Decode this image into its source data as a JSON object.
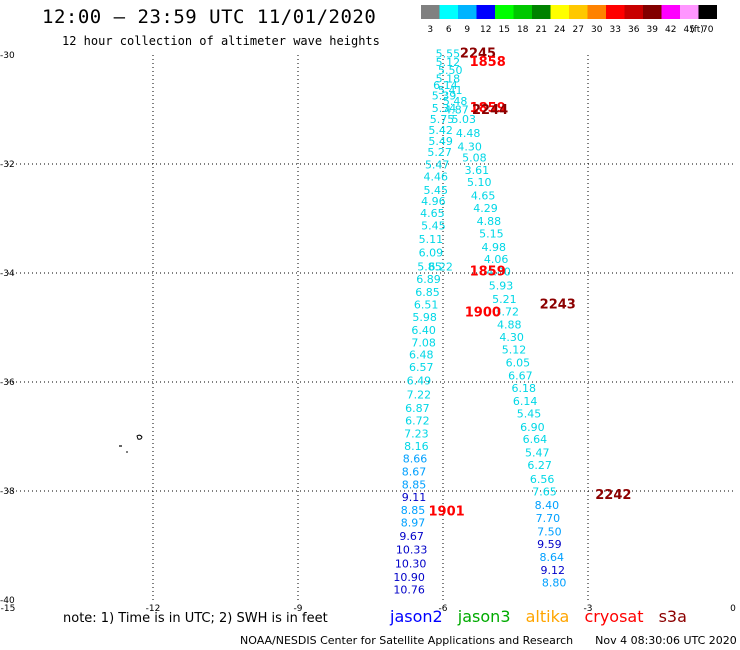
{
  "header": {
    "title": "12:00 – 23:59 UTC 11/01/2020",
    "subtitle": "12 hour collection of altimeter wave heights"
  },
  "colorbar": {
    "unit_label": "(ft)",
    "bins": [
      {
        "label": "3",
        "color": "#808080"
      },
      {
        "label": "6",
        "color": "#00ffff"
      },
      {
        "label": "9",
        "color": "#00b4ff"
      },
      {
        "label": "12",
        "color": "#0000ff"
      },
      {
        "label": "15",
        "color": "#00ff00"
      },
      {
        "label": "18",
        "color": "#00c800"
      },
      {
        "label": "21",
        "color": "#008200"
      },
      {
        "label": "24",
        "color": "#ffff00"
      },
      {
        "label": "27",
        "color": "#ffc800"
      },
      {
        "label": "30",
        "color": "#ff8200"
      },
      {
        "label": "33",
        "color": "#ff0000"
      },
      {
        "label": "36",
        "color": "#c80000"
      },
      {
        "label": "39",
        "color": "#820000"
      },
      {
        "label": "42",
        "color": "#ff00ff"
      },
      {
        "label": "45",
        "color": "#ff96ff"
      },
      {
        "label": "70",
        "color": "#000000"
      }
    ]
  },
  "axes": {
    "lon_range": [
      -15,
      0
    ],
    "lat_range": [
      -40,
      -30
    ],
    "x_ticks": [
      {
        "value": -15,
        "label": "-15"
      },
      {
        "value": -12,
        "label": "-12"
      },
      {
        "value": -9,
        "label": "-9"
      },
      {
        "value": -6,
        "label": "-6"
      },
      {
        "value": -3,
        "label": "-3"
      },
      {
        "value": 0,
        "label": "0"
      }
    ],
    "y_ticks": [
      {
        "value": -30,
        "label": "-30"
      },
      {
        "value": -32,
        "label": "-32"
      },
      {
        "value": -34,
        "label": "-34"
      },
      {
        "value": -36,
        "label": "-36"
      },
      {
        "value": -38,
        "label": "-38"
      },
      {
        "value": -40,
        "label": "-40"
      }
    ],
    "grid": "dotted"
  },
  "colors": {
    "cyan": "#00d7e6",
    "light_blue": "#00a0ff",
    "dark_blue": "#0000c8",
    "red": "#ff0000",
    "dark_red": "#8c0000"
  },
  "tracks": {
    "track_a": [
      {
        "lon": -5.9,
        "lat": -30.05,
        "v": "5.55",
        "c": "cyan"
      },
      {
        "lon": -5.9,
        "lat": -30.2,
        "v": "5.12",
        "c": "cyan"
      },
      {
        "lon": -5.85,
        "lat": -30.35,
        "v": "5.50",
        "c": "cyan"
      },
      {
        "lon": -5.9,
        "lat": -30.5,
        "v": "5.18",
        "c": "cyan"
      },
      {
        "lon": -5.95,
        "lat": -30.62,
        "v": "6.14",
        "c": "cyan"
      },
      {
        "lon": -5.85,
        "lat": -30.72,
        "v": "5.41",
        "c": "cyan"
      },
      {
        "lon": -5.98,
        "lat": -30.82,
        "v": "5.39",
        "c": "cyan"
      },
      {
        "lon": -5.75,
        "lat": -30.92,
        "v": "5.48",
        "c": "cyan"
      },
      {
        "lon": -5.98,
        "lat": -31.05,
        "v": "5.34",
        "c": "cyan"
      },
      {
        "lon": -5.72,
        "lat": -31.07,
        "v": "4.87",
        "c": "cyan"
      },
      {
        "lon": -6.02,
        "lat": -31.25,
        "v": "5.75",
        "c": "cyan"
      },
      {
        "lon": -5.57,
        "lat": -31.25,
        "v": "5.03",
        "c": "cyan"
      },
      {
        "lon": -6.05,
        "lat": -31.45,
        "v": "5.42",
        "c": "cyan"
      },
      {
        "lon": -5.48,
        "lat": -31.5,
        "v": "4.48",
        "c": "cyan"
      },
      {
        "lon": -6.05,
        "lat": -31.65,
        "v": "5.49",
        "c": "cyan"
      },
      {
        "lon": -5.45,
        "lat": -31.75,
        "v": "4.30",
        "c": "cyan"
      },
      {
        "lon": -6.07,
        "lat": -31.85,
        "v": "5.27",
        "c": "cyan"
      },
      {
        "lon": -5.35,
        "lat": -31.95,
        "v": "5.08",
        "c": "cyan"
      },
      {
        "lon": -6.12,
        "lat": -32.08,
        "v": "5.47",
        "c": "cyan"
      },
      {
        "lon": -5.3,
        "lat": -32.18,
        "v": "3.61",
        "c": "cyan"
      },
      {
        "lon": -6.15,
        "lat": -32.3,
        "v": "4.46",
        "c": "cyan"
      },
      {
        "lon": -5.25,
        "lat": -32.4,
        "v": "5.10",
        "c": "cyan"
      },
      {
        "lon": -6.15,
        "lat": -32.55,
        "v": "5.45",
        "c": "cyan"
      },
      {
        "lon": -5.17,
        "lat": -32.65,
        "v": "4.65",
        "c": "cyan"
      },
      {
        "lon": -6.2,
        "lat": -32.75,
        "v": "4.96",
        "c": "cyan"
      },
      {
        "lon": -5.12,
        "lat": -32.88,
        "v": "4.29",
        "c": "cyan"
      },
      {
        "lon": -6.22,
        "lat": -32.97,
        "v": "4.65",
        "c": "cyan"
      },
      {
        "lon": -5.05,
        "lat": -33.12,
        "v": "4.88",
        "c": "cyan"
      },
      {
        "lon": -6.2,
        "lat": -33.2,
        "v": "5.45",
        "c": "cyan"
      },
      {
        "lon": -5.0,
        "lat": -33.35,
        "v": "5.15",
        "c": "cyan"
      },
      {
        "lon": -6.25,
        "lat": -33.45,
        "v": "5.11",
        "c": "cyan"
      },
      {
        "lon": -4.95,
        "lat": -33.6,
        "v": "4.98",
        "c": "cyan"
      },
      {
        "lon": -6.25,
        "lat": -33.7,
        "v": "6.09",
        "c": "cyan"
      },
      {
        "lon": -4.9,
        "lat": -33.82,
        "v": "4.06",
        "c": "cyan"
      },
      {
        "lon": -6.28,
        "lat": -33.95,
        "v": "5.85",
        "c": "cyan"
      },
      {
        "lon": -6.05,
        "lat": -33.95,
        "v": "6.22",
        "c": "cyan"
      },
      {
        "lon": -4.85,
        "lat": -34.05,
        "v": "4.80",
        "c": "cyan"
      },
      {
        "lon": -6.3,
        "lat": -34.18,
        "v": "6.89",
        "c": "cyan"
      },
      {
        "lon": -4.8,
        "lat": -34.3,
        "v": "5.93",
        "c": "cyan"
      },
      {
        "lon": -6.32,
        "lat": -34.42,
        "v": "6.85",
        "c": "cyan"
      },
      {
        "lon": -4.73,
        "lat": -34.55,
        "v": "5.21",
        "c": "cyan"
      },
      {
        "lon": -6.35,
        "lat": -34.65,
        "v": "6.51",
        "c": "cyan"
      },
      {
        "lon": -4.68,
        "lat": -34.78,
        "v": "3.72",
        "c": "cyan"
      },
      {
        "lon": -6.38,
        "lat": -34.88,
        "v": "5.98",
        "c": "cyan"
      },
      {
        "lon": -4.63,
        "lat": -35.02,
        "v": "4.88",
        "c": "cyan"
      },
      {
        "lon": -6.4,
        "lat": -35.12,
        "v": "6.40",
        "c": "cyan"
      },
      {
        "lon": -4.58,
        "lat": -35.25,
        "v": "4.30",
        "c": "cyan"
      },
      {
        "lon": -6.4,
        "lat": -35.35,
        "v": "7.08",
        "c": "cyan"
      },
      {
        "lon": -4.53,
        "lat": -35.48,
        "v": "5.12",
        "c": "cyan"
      },
      {
        "lon": -6.45,
        "lat": -35.57,
        "v": "6.48",
        "c": "cyan"
      },
      {
        "lon": -4.45,
        "lat": -35.72,
        "v": "6.05",
        "c": "cyan"
      },
      {
        "lon": -6.45,
        "lat": -35.8,
        "v": "6.57",
        "c": "cyan"
      },
      {
        "lon": -4.4,
        "lat": -35.95,
        "v": "6.67",
        "c": "cyan"
      },
      {
        "lon": -6.5,
        "lat": -36.05,
        "v": "6.49",
        "c": "cyan"
      },
      {
        "lon": -4.33,
        "lat": -36.18,
        "v": "6.18",
        "c": "cyan"
      },
      {
        "lon": -6.5,
        "lat": -36.3,
        "v": "7.22",
        "c": "cyan"
      },
      {
        "lon": -4.3,
        "lat": -36.42,
        "v": "6.14",
        "c": "cyan"
      },
      {
        "lon": -6.53,
        "lat": -36.55,
        "v": "6.87",
        "c": "cyan"
      },
      {
        "lon": -4.22,
        "lat": -36.65,
        "v": "5.45",
        "c": "cyan"
      },
      {
        "lon": -6.53,
        "lat": -36.78,
        "v": "6.72",
        "c": "cyan"
      },
      {
        "lon": -4.15,
        "lat": -36.9,
        "v": "6.90",
        "c": "cyan"
      },
      {
        "lon": -6.55,
        "lat": -37.02,
        "v": "7.23",
        "c": "cyan"
      },
      {
        "lon": -4.1,
        "lat": -37.12,
        "v": "6.64",
        "c": "cyan"
      },
      {
        "lon": -6.55,
        "lat": -37.25,
        "v": "8.16",
        "c": "cyan"
      },
      {
        "lon": -4.05,
        "lat": -37.37,
        "v": "5.47",
        "c": "cyan"
      },
      {
        "lon": -6.58,
        "lat": -37.48,
        "v": "8.66",
        "c": "light_blue"
      },
      {
        "lon": -4.0,
        "lat": -37.6,
        "v": "6.27",
        "c": "cyan"
      },
      {
        "lon": -6.6,
        "lat": -37.72,
        "v": "8.67",
        "c": "light_blue"
      },
      {
        "lon": -3.95,
        "lat": -37.85,
        "v": "6.56",
        "c": "cyan"
      },
      {
        "lon": -6.6,
        "lat": -37.95,
        "v": "8.85",
        "c": "light_blue"
      },
      {
        "lon": -3.9,
        "lat": -38.08,
        "v": "7.65",
        "c": "cyan"
      },
      {
        "lon": -6.6,
        "lat": -38.18,
        "v": "9.11",
        "c": "dark_blue"
      },
      {
        "lon": -3.85,
        "lat": -38.33,
        "v": "8.40",
        "c": "light_blue"
      },
      {
        "lon": -6.62,
        "lat": -38.42,
        "v": "8.85",
        "c": "light_blue"
      },
      {
        "lon": -3.83,
        "lat": -38.57,
        "v": "7.70",
        "c": "light_blue"
      },
      {
        "lon": -6.62,
        "lat": -38.65,
        "v": "8.97",
        "c": "light_blue"
      },
      {
        "lon": -3.8,
        "lat": -38.82,
        "v": "7.50",
        "c": "light_blue"
      },
      {
        "lon": -6.65,
        "lat": -38.9,
        "v": "9.67",
        "c": "dark_blue"
      },
      {
        "lon": -3.8,
        "lat": -39.05,
        "v": "9.59",
        "c": "dark_blue"
      },
      {
        "lon": -6.65,
        "lat": -39.15,
        "v": "10.33",
        "c": "dark_blue"
      },
      {
        "lon": -3.75,
        "lat": -39.28,
        "v": "8.64",
        "c": "light_blue"
      },
      {
        "lon": -6.67,
        "lat": -39.4,
        "v": "10.30",
        "c": "dark_blue"
      },
      {
        "lon": -3.73,
        "lat": -39.52,
        "v": "9.12",
        "c": "dark_blue"
      },
      {
        "lon": -6.7,
        "lat": -39.65,
        "v": "10.90",
        "c": "dark_blue"
      },
      {
        "lon": -3.7,
        "lat": -39.75,
        "v": "8.80",
        "c": "light_blue"
      },
      {
        "lon": -6.7,
        "lat": -39.88,
        "v": "10.76",
        "c": "dark_blue"
      }
    ]
  },
  "pass_times": [
    {
      "lon": -5.65,
      "lat": -30.05,
      "t": "2245",
      "c": "dark_red"
    },
    {
      "lon": -5.45,
      "lat": -30.2,
      "t": "1858",
      "c": "red"
    },
    {
      "lon": -5.45,
      "lat": -31.05,
      "t": "1859",
      "c": "red"
    },
    {
      "lon": -5.4,
      "lat": -31.08,
      "t": "2244",
      "c": "dark_red"
    },
    {
      "lon": -5.45,
      "lat": -34.05,
      "t": "1859",
      "c": "red"
    },
    {
      "lon": -5.55,
      "lat": -34.8,
      "t": "1900",
      "c": "red"
    },
    {
      "lon": -4.0,
      "lat": -34.65,
      "t": "2243",
      "c": "dark_red"
    },
    {
      "lon": -2.85,
      "lat": -38.15,
      "t": "2242",
      "c": "dark_red"
    },
    {
      "lon": -6.3,
      "lat": -38.45,
      "t": "1901",
      "c": "red"
    }
  ],
  "footer": {
    "note": "note: 1) Time is in UTC; 2) SWH is in feet",
    "legend": [
      {
        "label": "jason2",
        "color": "#0000ff"
      },
      {
        "label": "jason3",
        "color": "#00aa00"
      },
      {
        "label": "altika",
        "color": "#ffa500"
      },
      {
        "label": "cryosat",
        "color": "#ff0000"
      },
      {
        "label": "s3a",
        "color": "#8c0000"
      }
    ],
    "credit_org": "NOAA/NESDIS Center for Satellite Applications and Research",
    "credit_time": "Nov  4 08:30:06 UTC 2020"
  }
}
